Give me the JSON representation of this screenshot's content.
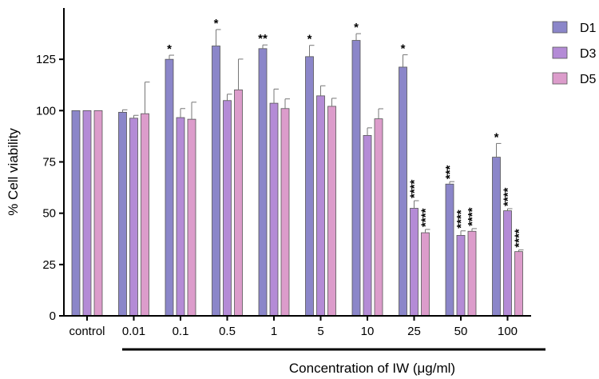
{
  "chart_data": {
    "type": "bar",
    "title": "",
    "xlabel": "Concentration of IW (μg/ml)",
    "ylabel": "% Cell viability",
    "ylim": [
      0,
      150
    ],
    "yticks": [
      0,
      25,
      50,
      75,
      100,
      125
    ],
    "categories": [
      "control",
      "0.01",
      "0.1",
      "0.5",
      "1",
      "5",
      "10",
      "25",
      "50",
      "100"
    ],
    "grid": false,
    "legend_position": "top-right",
    "series": [
      {
        "name": "D1",
        "color": "#8b86c9",
        "values": [
          100,
          99.2,
          125,
          131.5,
          130.2,
          126.3,
          134.2,
          121.2,
          64.2,
          77.3
        ],
        "errors": [
          0,
          1.2,
          2,
          8,
          1.8,
          5.5,
          3.3,
          6,
          1.2,
          6.7
        ],
        "significance": [
          "",
          "",
          "*",
          "*",
          "**",
          "*",
          "*",
          "*",
          "***",
          "*"
        ]
      },
      {
        "name": "D3",
        "color": "#b48bd6",
        "values": [
          100,
          96.3,
          96.6,
          104.9,
          103.6,
          107.2,
          87.9,
          52.4,
          39.2,
          51.2
        ],
        "errors": [
          0,
          1.4,
          4.4,
          3.1,
          6.9,
          4.9,
          3.7,
          3.7,
          2.2,
          1
        ],
        "significance": [
          "",
          "",
          "",
          "",
          "",
          "",
          "",
          "****",
          "****",
          "****"
        ]
      },
      {
        "name": "D5",
        "color": "#dc9ccb",
        "values": [
          100,
          98.5,
          95.8,
          110.1,
          101,
          102.1,
          96,
          40.5,
          41.2,
          31.3
        ],
        "errors": [
          0,
          15.4,
          8.3,
          15,
          4.7,
          3.9,
          4.9,
          1.6,
          1.3,
          0.8
        ],
        "significance": [
          "",
          "",
          "",
          "",
          "",
          "",
          "",
          "****",
          "****",
          "****"
        ]
      }
    ]
  }
}
